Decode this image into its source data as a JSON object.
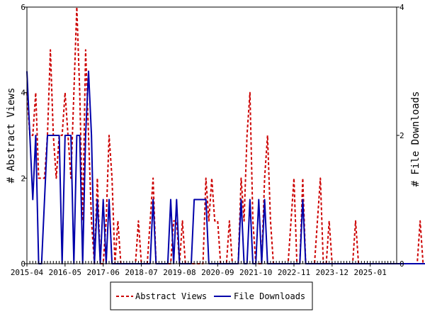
{
  "chart_data": {
    "type": "line",
    "x_unit": "month",
    "x_start": "2015-04",
    "x_ticks": [
      "2015-04",
      "2016-05",
      "2017-06",
      "2018-07",
      "2019-08",
      "2020-09",
      "2021-10",
      "2022-11",
      "2023-12",
      "2025-01"
    ],
    "xlim": [
      "2015-04",
      "2025-10"
    ],
    "ylabel_left": "# Abstract Views",
    "ylabel_right": "# File Downloads",
    "ylim_left": [
      0,
      6
    ],
    "ylim_right": [
      0,
      4
    ],
    "yticks_left": [
      "0",
      "2",
      "4",
      "6"
    ],
    "yticks_right": [
      "0",
      "2",
      "4"
    ],
    "grid": false,
    "legend_position": "bottom",
    "series": [
      {
        "name": "Abstract Views",
        "axis": "left",
        "color": "#cc0000",
        "style": "dashed",
        "values": [
          4,
          3,
          3,
          4,
          2,
          2,
          2,
          3,
          5,
          3,
          2,
          3,
          3,
          4,
          3,
          2,
          4,
          6,
          4,
          1,
          5,
          3,
          1,
          0,
          2,
          0,
          0,
          1,
          3,
          2,
          0,
          1,
          0,
          0,
          0,
          0,
          0,
          0,
          1,
          0,
          0,
          0,
          1,
          2,
          0,
          0,
          0,
          0,
          0,
          0,
          1,
          1,
          0,
          1,
          0,
          0,
          0,
          0,
          0,
          0,
          0,
          2,
          1,
          2,
          1,
          1,
          0,
          0,
          0,
          1,
          0,
          0,
          0,
          2,
          1,
          3,
          4,
          1,
          0,
          0,
          0,
          2,
          3,
          1,
          0,
          0,
          0,
          0,
          0,
          0,
          1,
          2,
          0,
          0,
          2,
          0,
          0,
          0,
          0,
          1,
          2,
          0,
          0,
          1,
          0,
          0,
          0,
          0,
          0,
          0,
          0,
          0,
          1,
          0,
          0,
          0,
          0,
          0,
          0,
          0,
          0,
          0,
          0,
          0,
          0,
          0,
          0,
          0,
          0,
          0,
          0,
          0,
          0,
          0,
          1,
          0,
          0,
          0,
          0,
          0,
          0,
          0,
          0,
          0,
          0,
          0,
          0,
          0,
          0,
          0,
          0,
          1,
          1,
          1,
          0,
          0,
          0,
          0,
          0,
          0,
          0,
          0,
          0,
          0,
          0,
          0,
          0,
          0,
          0,
          0,
          0,
          0,
          0
        ]
      },
      {
        "name": "File Downloads",
        "axis": "right",
        "color": "#0000aa",
        "style": "solid",
        "values": [
          3,
          2,
          1,
          2,
          0,
          0,
          1,
          2,
          2,
          2,
          2,
          2,
          0,
          2,
          2,
          2,
          0,
          2,
          2,
          0,
          2,
          3,
          2,
          0,
          1,
          0,
          1,
          0,
          1,
          0,
          0,
          0,
          0,
          0,
          0,
          0,
          0,
          0,
          0,
          0,
          0,
          0,
          0,
          1,
          0,
          0,
          0,
          0,
          0,
          1,
          0,
          1,
          0,
          0,
          0,
          0,
          0,
          1,
          1,
          1,
          1,
          1,
          0,
          0,
          0,
          0,
          0,
          0,
          0,
          0,
          0,
          0,
          0,
          1,
          0,
          0,
          1,
          0,
          0,
          1,
          0,
          1,
          0,
          0,
          0,
          0,
          0,
          0,
          0,
          0,
          0,
          0,
          0,
          0,
          1,
          0,
          0,
          0,
          0,
          0,
          0,
          0,
          0,
          0,
          0,
          0,
          0,
          0,
          0,
          0,
          0,
          0,
          0,
          0,
          0,
          0,
          0,
          0,
          0,
          0,
          0,
          0,
          0,
          0,
          0,
          0,
          0,
          0,
          0,
          0,
          0,
          0,
          0,
          0,
          0,
          0,
          0,
          0,
          0,
          0,
          0,
          0,
          0,
          0,
          0,
          0,
          0,
          0,
          0,
          0,
          0,
          0,
          0,
          0,
          0,
          0,
          0,
          0,
          0,
          0,
          0,
          0,
          0,
          0,
          0,
          0,
          0,
          0,
          0,
          0,
          0,
          0,
          0,
          0,
          0
        ]
      }
    ]
  }
}
